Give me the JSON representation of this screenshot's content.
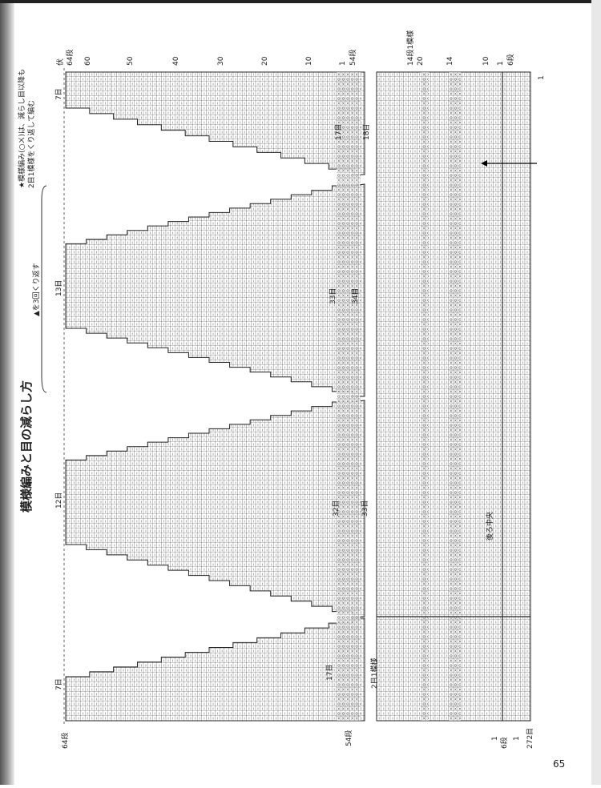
{
  "header": {
    "title": "模様編みと目の減らし方",
    "note": [
      "★模様編み(○ㄨ)は、減らし目以降も",
      "2目1模様をくり返して編む"
    ],
    "repeat_note": "▲を3回くり返す"
  },
  "top_labels": [
    "伏",
    "64段",
    "60",
    "50",
    "40",
    "30",
    "20",
    "10",
    "1",
    "54段",
    "14段1模様",
    "20",
    "14",
    "10",
    "1",
    "6段",
    "1"
  ],
  "bottom_labels": [
    "64段",
    "54段",
    "1",
    "6段",
    "1",
    "272目"
  ],
  "stitch_labels": [
    "7目",
    "13目",
    "12目",
    "7目",
    "17目",
    "18目",
    "33目",
    "34目",
    "32目",
    "33目",
    "17目",
    "2目1模様",
    "後ろ中央"
  ],
  "page_number": "65"
}
